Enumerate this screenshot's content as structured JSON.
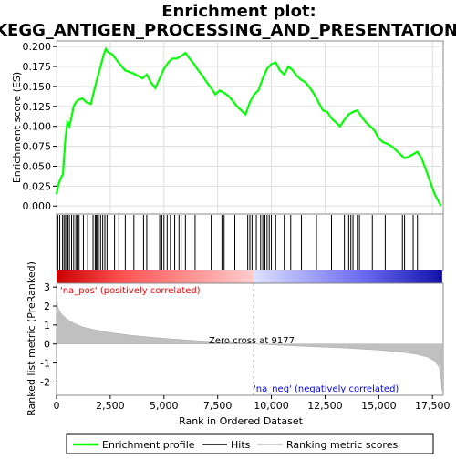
{
  "chart_data": [
    {
      "type": "line",
      "panel": "enrichment-profile",
      "title": "Enrichment plot:\nKEGG_ANTIGEN_PROCESSING_AND_PRESENTATION",
      "title_lines": [
        "Enrichment plot:",
        "KEGG_ANTIGEN_PROCESSING_AND_PRESENTATION"
      ],
      "ylabel": "Enrichment score (ES)",
      "xlim": [
        0,
        18000
      ],
      "ylim": [
        -0.01,
        0.207
      ],
      "yticks": [
        0.0,
        0.025,
        0.05,
        0.075,
        0.1,
        0.125,
        0.15,
        0.175,
        0.2
      ],
      "ytick_labels": [
        "0.000",
        "0.025",
        "0.050",
        "0.075",
        "0.100",
        "0.125",
        "0.150",
        "0.175",
        "0.200"
      ],
      "grid": true,
      "series": [
        {
          "name": "Enrichment profile",
          "color": "#00ff00",
          "x": [
            0,
            100,
            200,
            300,
            400,
            500,
            600,
            700,
            800,
            900,
            1000,
            1200,
            1400,
            1600,
            1800,
            2000,
            2100,
            2200,
            2300,
            2400,
            2600,
            2800,
            3000,
            3200,
            3400,
            3600,
            3800,
            4000,
            4200,
            4400,
            4600,
            4800,
            5000,
            5200,
            5400,
            5600,
            5800,
            6000,
            6200,
            6400,
            6600,
            6800,
            7000,
            7200,
            7400,
            7600,
            7800,
            8000,
            8200,
            8400,
            8600,
            8800,
            9000,
            9200,
            9400,
            9600,
            9800,
            10000,
            10200,
            10400,
            10600,
            10800,
            11000,
            11200,
            11400,
            11600,
            11800,
            12000,
            12200,
            12400,
            12600,
            12800,
            13000,
            13200,
            13400,
            13600,
            13800,
            14000,
            14200,
            14400,
            14600,
            14800,
            15000,
            15200,
            15400,
            15600,
            15800,
            16000,
            16200,
            16400,
            16600,
            16800,
            17000,
            17200,
            17400,
            17600,
            17900
          ],
          "y": [
            0.015,
            0.028,
            0.035,
            0.04,
            0.08,
            0.105,
            0.1,
            0.112,
            0.125,
            0.13,
            0.133,
            0.135,
            0.13,
            0.128,
            0.15,
            0.17,
            0.18,
            0.19,
            0.197,
            0.193,
            0.19,
            0.183,
            0.176,
            0.17,
            0.168,
            0.166,
            0.163,
            0.16,
            0.165,
            0.155,
            0.148,
            0.16,
            0.172,
            0.18,
            0.185,
            0.185,
            0.188,
            0.192,
            0.185,
            0.178,
            0.17,
            0.163,
            0.155,
            0.148,
            0.14,
            0.145,
            0.142,
            0.138,
            0.132,
            0.125,
            0.12,
            0.115,
            0.13,
            0.14,
            0.145,
            0.16,
            0.172,
            0.178,
            0.18,
            0.17,
            0.165,
            0.175,
            0.17,
            0.163,
            0.158,
            0.155,
            0.148,
            0.14,
            0.13,
            0.12,
            0.118,
            0.11,
            0.105,
            0.1,
            0.108,
            0.115,
            0.118,
            0.12,
            0.112,
            0.105,
            0.1,
            0.095,
            0.085,
            0.08,
            0.078,
            0.075,
            0.07,
            0.065,
            0.06,
            0.062,
            0.065,
            0.068,
            0.06,
            0.045,
            0.03,
            0.015,
            0.0
          ]
        }
      ]
    },
    {
      "type": "scatter",
      "panel": "hits",
      "series": [
        {
          "name": "Hits",
          "color": "#000000",
          "x": [
            60,
            150,
            280,
            350,
            420,
            480,
            530,
            600,
            700,
            800,
            900,
            960,
            1050,
            1250,
            1450,
            1700,
            1800,
            1850,
            1900,
            1950,
            2050,
            2150,
            2250,
            2350,
            2700,
            2900,
            3200,
            3600,
            4050,
            4200,
            4800,
            4900,
            5000,
            5150,
            5300,
            5500,
            5700,
            5800,
            6000,
            6450,
            7200,
            7700,
            7800,
            8300,
            8900,
            9000,
            9100,
            9300,
            9500,
            9600,
            9700,
            9800,
            9900,
            10000,
            10200,
            10600,
            10900,
            11400,
            12100,
            12800,
            13400,
            13600,
            13700,
            13800,
            14000,
            14100,
            14700,
            15300,
            16100,
            16200,
            16600,
            16800
          ]
        }
      ]
    },
    {
      "type": "area",
      "panel": "ranked-list",
      "ylabel": "Ranked list metric (PreRanked)",
      "xlabel": "Rank in Ordered Dataset",
      "xlim": [
        0,
        18000
      ],
      "ylim": [
        -2.7,
        3.2
      ],
      "yticks": [
        -2,
        -1,
        0,
        1,
        2,
        3
      ],
      "xticks": [
        0,
        2500,
        5000,
        7500,
        10000,
        12500,
        15000,
        17500
      ],
      "xtick_labels": [
        "0",
        "2,500",
        "5,000",
        "7,500",
        "10,000",
        "12,500",
        "15,000",
        "17,500"
      ],
      "series": [
        {
          "name": "Ranking metric scores",
          "color": "#c0c0c0",
          "x": [
            0,
            50,
            150,
            300,
            500,
            800,
            1200,
            1800,
            2500,
            3500,
            5000,
            6500,
            8000,
            9177,
            10500,
            12000,
            13500,
            15000,
            16000,
            16800,
            17300,
            17600,
            17800,
            17900,
            17950
          ],
          "y": [
            2.9,
            2.0,
            1.7,
            1.5,
            1.3,
            1.1,
            0.9,
            0.75,
            0.6,
            0.45,
            0.3,
            0.18,
            0.08,
            0.0,
            -0.07,
            -0.15,
            -0.22,
            -0.32,
            -0.42,
            -0.55,
            -0.7,
            -0.9,
            -1.2,
            -1.8,
            -2.5
          ]
        }
      ],
      "annotations": [
        {
          "text": "'na_pos' (positively correlated)",
          "color": "#ff0000"
        },
        {
          "text": "Zero cross at 9177",
          "color": "#000000"
        },
        {
          "text": "'na_neg' (negatively correlated)",
          "color": "#0000ff"
        }
      ],
      "zero_cross": 9177
    }
  ],
  "legend": {
    "placement": "bottom",
    "items": [
      {
        "label": "Enrichment profile",
        "color": "#00ff00"
      },
      {
        "label": "Hits",
        "color": "#000000"
      },
      {
        "label": "Ranking metric scores",
        "color": "#c0c0c0"
      }
    ]
  }
}
